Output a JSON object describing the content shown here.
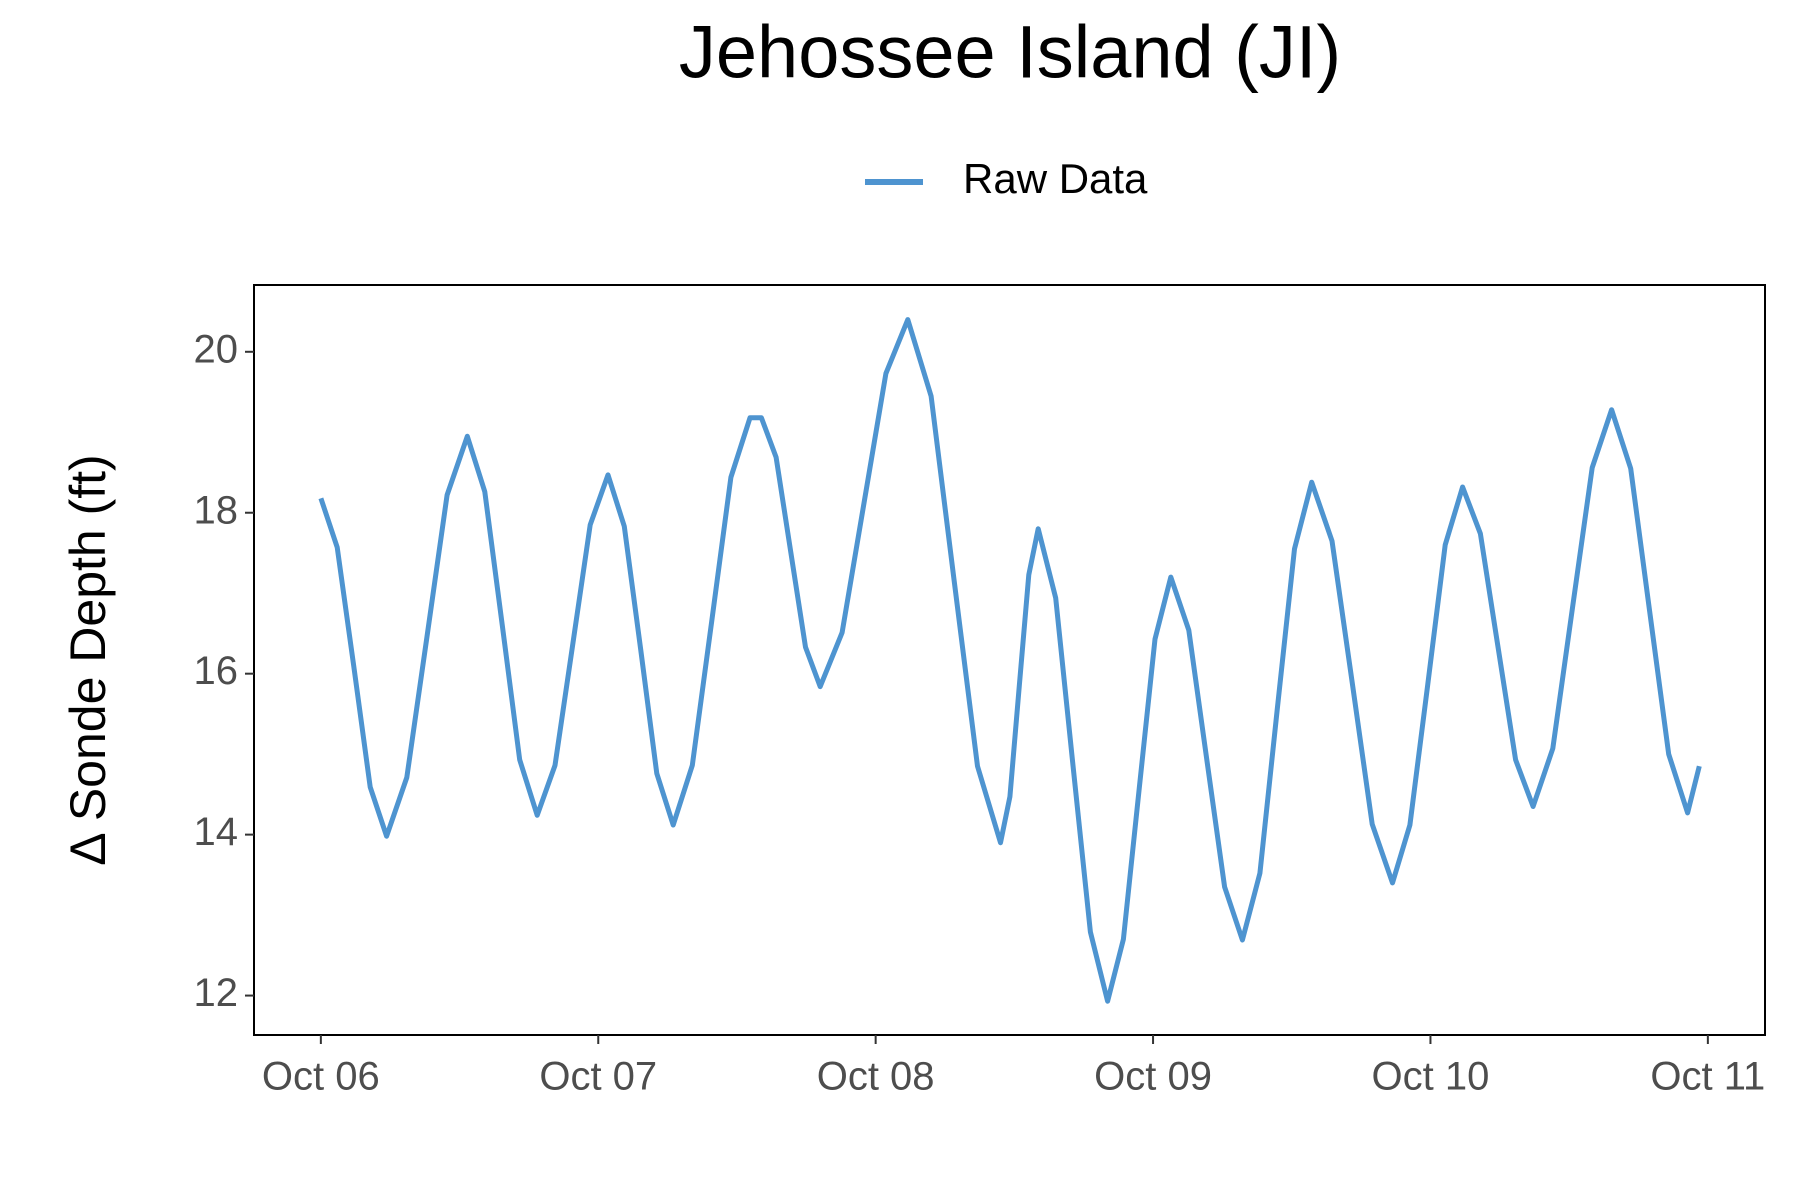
{
  "chart_data": {
    "type": "line",
    "title": "Jehossee Island (JI)",
    "y_label": "Δ Sonde Depth (ft)",
    "x": [
      0,
      0.059,
      0.119,
      0.178,
      0.237,
      0.31,
      0.383,
      0.455,
      0.528,
      0.591,
      0.654,
      0.717,
      0.78,
      0.844,
      0.908,
      0.971,
      1.035,
      1.094,
      1.153,
      1.211,
      1.27,
      1.339,
      1.409,
      1.478,
      1.547,
      1.588,
      1.641,
      1.694,
      1.747,
      1.8,
      1.879,
      1.958,
      2.037,
      2.116,
      2.2,
      2.283,
      2.367,
      2.45,
      2.484,
      2.518,
      2.552,
      2.586,
      2.649,
      2.711,
      2.774,
      2.836,
      2.893,
      2.95,
      3.007,
      3.064,
      3.129,
      3.193,
      3.258,
      3.322,
      3.385,
      3.447,
      3.51,
      3.572,
      3.645,
      3.718,
      3.79,
      3.863,
      3.926,
      3.99,
      4.053,
      4.116,
      4.18,
      4.243,
      4.307,
      4.37,
      4.441,
      4.512,
      4.583,
      4.653,
      4.722,
      4.79,
      4.859,
      4.927,
      4.969
    ],
    "series": [
      {
        "name": "Raw Data",
        "color": "#4e94d0",
        "values": [
          18.18,
          17.57,
          16.08,
          14.59,
          13.98,
          14.71,
          16.47,
          18.22,
          18.95,
          18.26,
          16.6,
          14.93,
          14.24,
          14.86,
          16.36,
          17.85,
          18.47,
          17.83,
          16.3,
          14.76,
          14.12,
          14.86,
          16.65,
          18.44,
          19.18,
          19.18,
          18.69,
          17.51,
          16.33,
          15.84,
          16.51,
          18.12,
          19.73,
          20.4,
          19.45,
          17.15,
          14.85,
          13.9,
          14.47,
          15.85,
          17.23,
          17.8,
          16.94,
          14.87,
          12.79,
          11.93,
          12.7,
          14.57,
          16.43,
          17.2,
          16.54,
          14.95,
          13.35,
          12.69,
          13.52,
          15.54,
          17.55,
          18.38,
          17.65,
          15.89,
          14.13,
          13.4,
          14.12,
          15.86,
          17.6,
          18.32,
          17.74,
          16.34,
          14.93,
          14.35,
          15.07,
          16.82,
          18.56,
          19.28,
          18.55,
          16.78,
          15.0,
          14.27,
          14.85
        ]
      }
    ],
    "xlim": [
      -0.241,
      5.206
    ],
    "xticks": [
      {
        "value": 0,
        "label": "Oct 06"
      },
      {
        "value": 1,
        "label": "Oct 07"
      },
      {
        "value": 2,
        "label": "Oct 08"
      },
      {
        "value": 3,
        "label": "Oct 09"
      },
      {
        "value": 4,
        "label": "Oct 10"
      },
      {
        "value": 5,
        "label": "Oct 11"
      }
    ],
    "ylim": [
      11.51,
      20.83
    ],
    "yticks": [
      12,
      14,
      16,
      18,
      20
    ],
    "legend_position": "top",
    "grid": false
  }
}
